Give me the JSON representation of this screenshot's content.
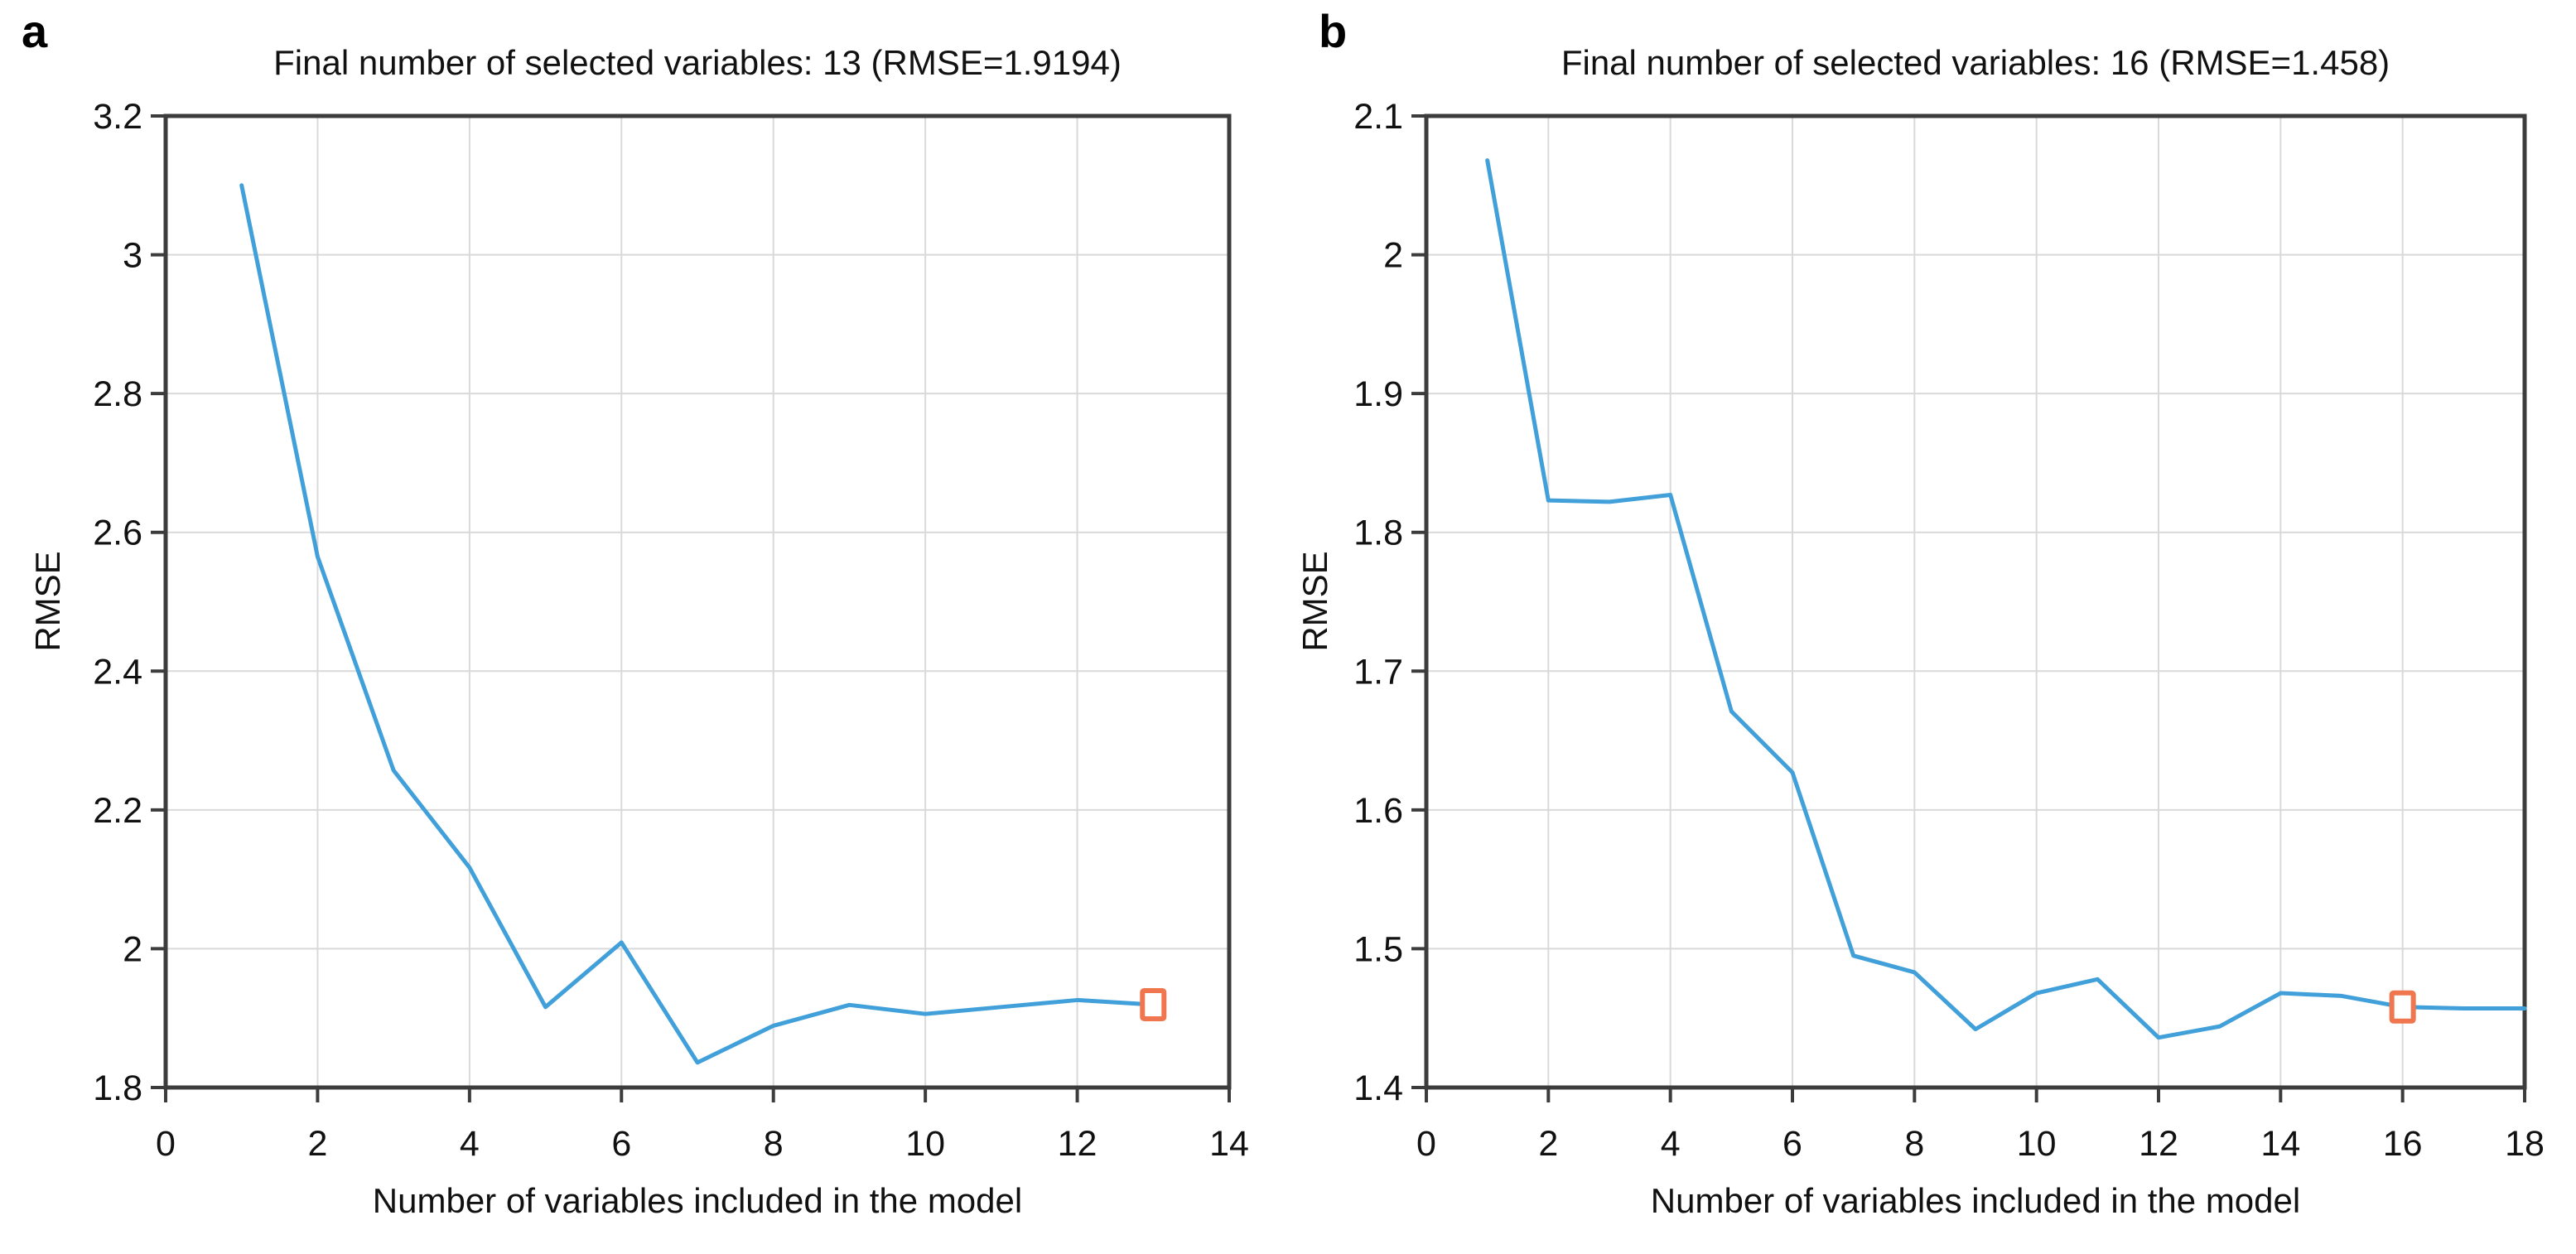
{
  "figure": {
    "background": "#ffffff",
    "text_color": "#111111",
    "frame_color": "#3c3c3c",
    "grid_color": "#d9d9d9"
  },
  "chart_data": [
    {
      "type": "line",
      "panel_label": "a",
      "title": "Final number of selected variables: 13 (RMSE=1.9194)",
      "xlabel": "Number of variables included in the model",
      "ylabel": "RMSE",
      "x": [
        1,
        2,
        3,
        4,
        5,
        6,
        7,
        8,
        9,
        10,
        11,
        12,
        13
      ],
      "y": [
        3.1,
        2.565,
        2.257,
        2.117,
        1.916,
        2.009,
        1.836,
        1.889,
        1.919,
        1.906,
        1.916,
        1.926,
        1.9194
      ],
      "final_point": {
        "x": 13,
        "y": 1.9194,
        "marker": "open-square"
      },
      "final_rmse": "1.9194",
      "final_n_variables": "13",
      "xlim": [
        0,
        14
      ],
      "ylim": [
        1.8,
        3.2
      ],
      "xticks": [
        0,
        2,
        4,
        6,
        8,
        10,
        12,
        14
      ],
      "xtick_labels": [
        "0",
        "2",
        "4",
        "6",
        "8",
        "10",
        "12",
        "14"
      ],
      "yticks": [
        1.8,
        2.0,
        2.2,
        2.4,
        2.6,
        2.8,
        3.0,
        3.2
      ],
      "ytick_labels": [
        "1.8",
        "2",
        "2.2",
        "2.4",
        "2.6",
        "2.8",
        "3",
        "3.2"
      ],
      "grid": true,
      "legend_position": "none",
      "line_color": "#41a0d9",
      "marker_color": "#f0764f"
    },
    {
      "type": "line",
      "panel_label": "b",
      "title": "Final number of selected variables: 16 (RMSE=1.458)",
      "xlabel": "Number of variables included in the model",
      "ylabel": "RMSE",
      "x": [
        1,
        2,
        3,
        4,
        5,
        6,
        7,
        8,
        9,
        10,
        11,
        12,
        13,
        14,
        15,
        16,
        17,
        18
      ],
      "y": [
        2.068,
        1.823,
        1.822,
        1.827,
        1.671,
        1.627,
        1.495,
        1.483,
        1.442,
        1.468,
        1.478,
        1.436,
        1.444,
        1.468,
        1.466,
        1.458,
        1.457,
        1.457
      ],
      "final_point": {
        "x": 16,
        "y": 1.458,
        "marker": "open-square"
      },
      "final_rmse": "1.458",
      "final_n_variables": "16",
      "xlim": [
        0,
        18
      ],
      "ylim": [
        1.4,
        2.1
      ],
      "xticks": [
        0,
        2,
        4,
        6,
        8,
        10,
        12,
        14,
        16,
        18
      ],
      "xtick_labels": [
        "0",
        "2",
        "4",
        "6",
        "8",
        "10",
        "12",
        "14",
        "16",
        "18"
      ],
      "yticks": [
        1.4,
        1.5,
        1.6,
        1.7,
        1.8,
        1.9,
        2.0,
        2.1
      ],
      "ytick_labels": [
        "1.4",
        "1.5",
        "1.6",
        "1.7",
        "1.8",
        "1.9",
        "2",
        "2.1"
      ],
      "grid": true,
      "legend_position": "none",
      "line_color": "#41a0d9",
      "marker_color": "#f0764f"
    }
  ]
}
